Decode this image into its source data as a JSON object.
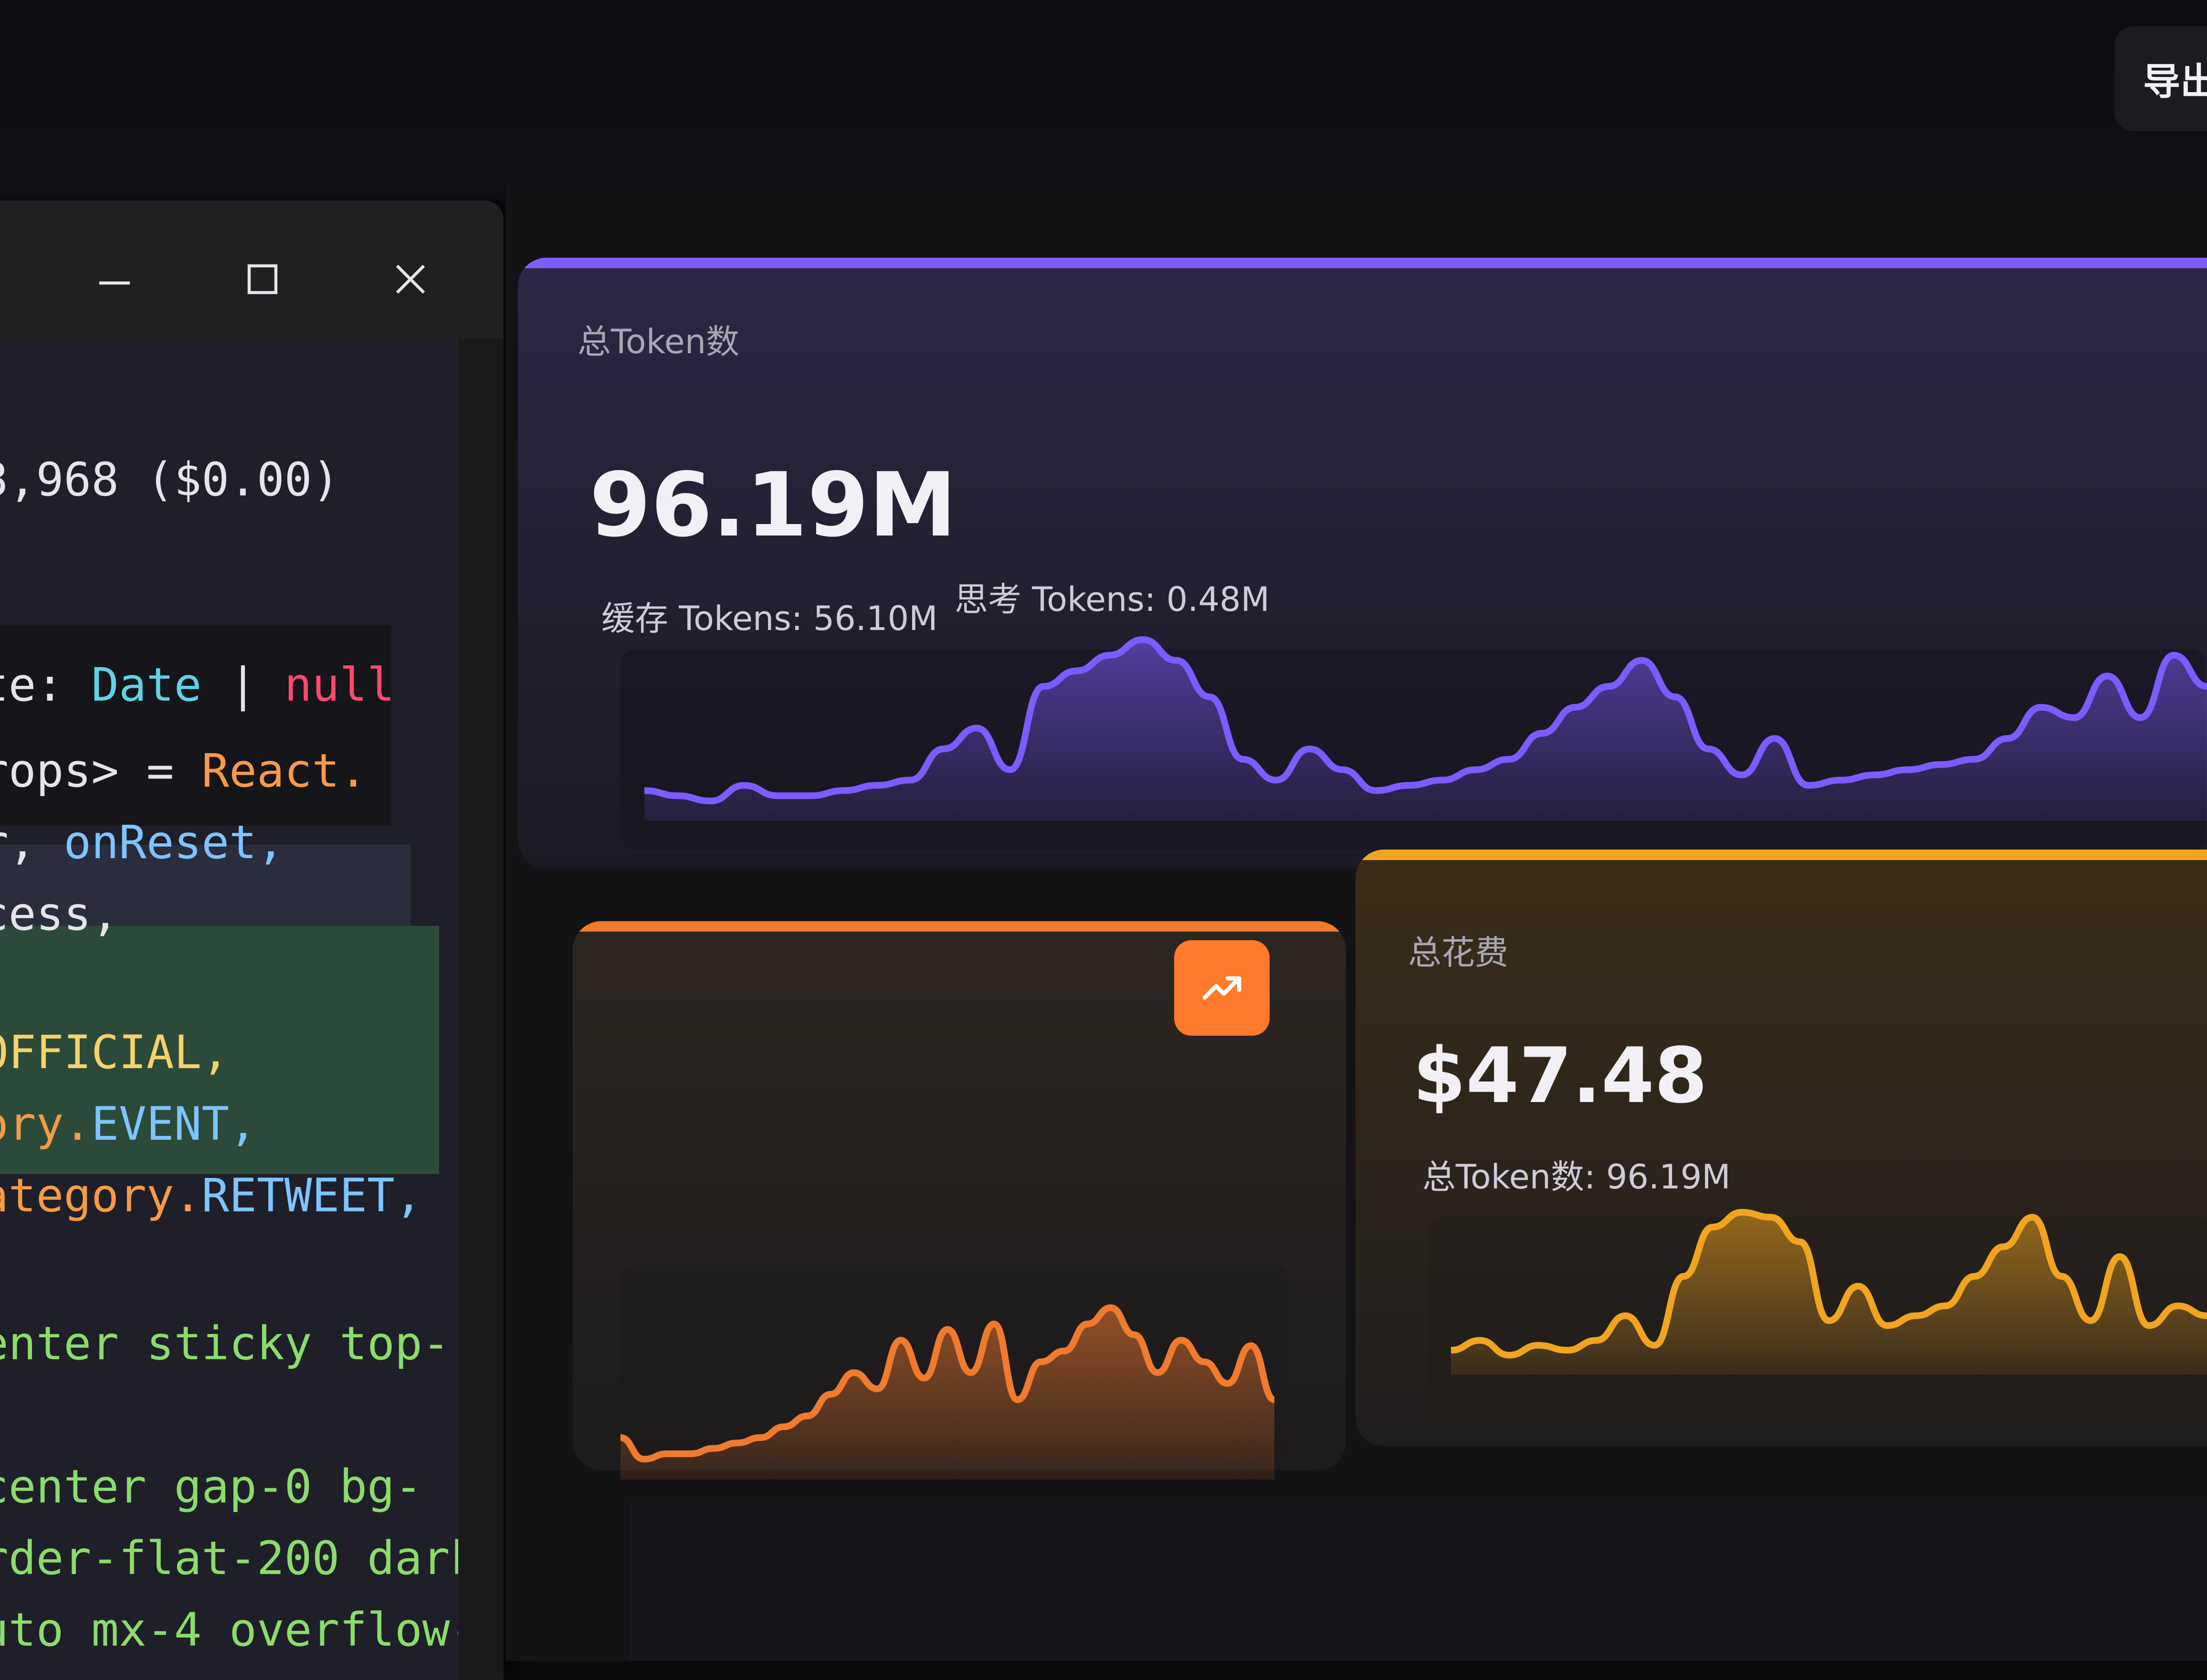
{
  "header": {
    "export_label": "导出"
  },
  "editor": {
    "window_controls": [
      "minimize-icon",
      "maximize-icon",
      "close-icon"
    ],
    "lines": [
      {
        "top": 630,
        "left": 0,
        "segments": [
          {
            "text": "3,968 ($0.00)",
            "color": "white"
          }
        ]
      },
      {
        "top": 1080,
        "left": 0,
        "segments": [
          {
            "text": "te: ",
            "color": "white"
          },
          {
            "text": "Date",
            "color": "cyan"
          },
          {
            "text": " | ",
            "color": "white"
          },
          {
            "text": "null",
            "color": "red"
          }
        ]
      },
      {
        "top": 1260,
        "left": 0,
        "segments": [
          {
            "text": "rops> = ",
            "color": "white"
          },
          {
            "text": "React.",
            "color": "orange"
          }
        ]
      },
      {
        "top": 1410,
        "left": 0,
        "segments": [
          {
            "text": "r, ",
            "color": "white"
          },
          {
            "text": "onReset,",
            "color": "blue"
          }
        ]
      },
      {
        "top": 1560,
        "left": 0,
        "segments": [
          {
            "text": "cess,",
            "color": "white"
          }
        ]
      },
      {
        "top": 1850,
        "left": 0,
        "segments": [
          {
            "text": "OFFICIAL,",
            "color": "yellow"
          }
        ]
      },
      {
        "top": 2000,
        "left": 0,
        "segments": [
          {
            "text": "ory.",
            "color": "orange"
          },
          {
            "text": "EVENT,",
            "color": "blue"
          }
        ]
      },
      {
        "top": 2150,
        "left": 0,
        "segments": [
          {
            "text": "ategory.",
            "color": "orange"
          },
          {
            "text": "RETWEET,",
            "color": "blue"
          }
        ]
      },
      {
        "top": 2470,
        "left": 0,
        "segments": [
          {
            "text": "enter sticky top-",
            "color": "green"
          }
        ]
      },
      {
        "top": 2760,
        "left": 0,
        "segments": [
          {
            "text": "center gap-0 bg-",
            "color": "green"
          }
        ]
      },
      {
        "top": 2910,
        "left": 0,
        "segments": [
          {
            "text": "rder-flat-200 dark",
            "color": "green"
          }
        ]
      },
      {
        "top": 3060,
        "left": 0,
        "segments": [
          {
            "text": "uto mx-4 overflow-",
            "color": "green"
          }
        ]
      }
    ]
  },
  "cards": {
    "total_tokens": {
      "label": "总Token数",
      "value": "96.19M",
      "cache_tokens": "缓存 Tokens: 56.10M",
      "thinking_tokens": "思考 Tokens: 0.48M",
      "accent": "#7c5cff"
    },
    "left_card": {
      "accent": "#f07a2e",
      "badge_icon": "trending-up-icon"
    },
    "total_cost": {
      "label": "总花费",
      "value": "$47.48",
      "sub": "总Token数: 96.19M",
      "accent": "#f0a41f"
    }
  },
  "chart_data": [
    {
      "type": "area",
      "series": [
        {
          "values": [
            4,
            3,
            2,
            5,
            3,
            3,
            4,
            5,
            6,
            12,
            16,
            8,
            24,
            27,
            30,
            33,
            29,
            22,
            10,
            6,
            12,
            8,
            4,
            5,
            6,
            8,
            10,
            15,
            20,
            24,
            29,
            22,
            12,
            7,
            14,
            5,
            6,
            7,
            8,
            9,
            10,
            14,
            20,
            18,
            26,
            18,
            30,
            24
          ]
        }
      ]
    },
    {
      "type": "area",
      "series": [
        {
          "values": [
            6,
            2,
            3,
            3,
            4,
            5,
            6,
            8,
            10,
            14,
            18,
            15,
            24,
            17,
            26,
            18,
            27,
            13,
            20,
            22,
            27,
            30,
            25,
            18,
            24,
            20,
            16,
            23,
            13
          ]
        }
      ]
    },
    {
      "type": "area",
      "series": [
        {
          "values": [
            3,
            5,
            2,
            4,
            3,
            5,
            10,
            4,
            18,
            28,
            31,
            30,
            25,
            9,
            16,
            8,
            10,
            12,
            18,
            24,
            30,
            18,
            9,
            22,
            8,
            12,
            10
          ]
        }
      ]
    }
  ]
}
